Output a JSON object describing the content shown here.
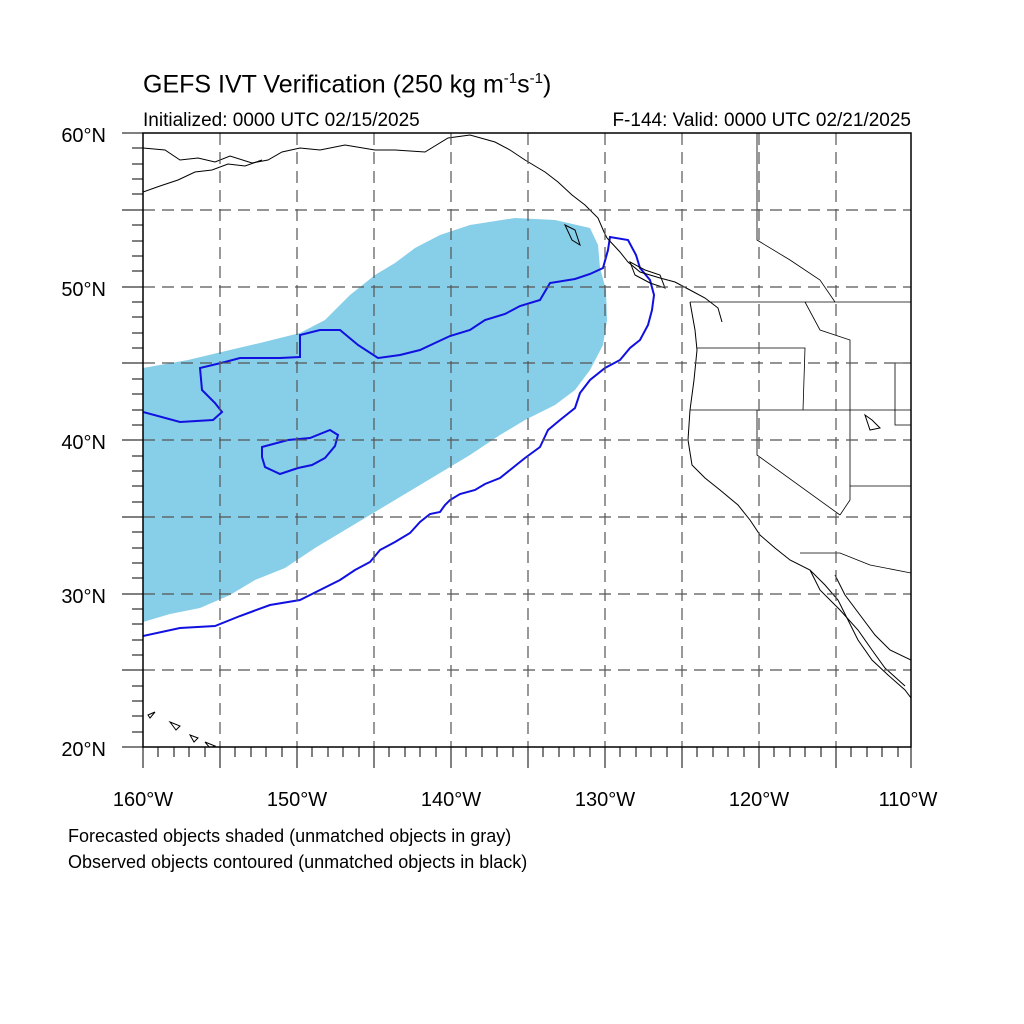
{
  "title": {
    "main": "GEFS IVT Verification (250 kg m",
    "exp1": "-1",
    "mid": "s",
    "exp2": "-1",
    "end": ")"
  },
  "initialized": "Initialized: 0000 UTC 02/15/2025",
  "valid": "F-144: Valid: 0000 UTC 02/21/2025",
  "captions": [
    "Forecasted objects shaded (unmatched objects in gray)",
    "Observed objects contoured (unmatched objects in black)"
  ],
  "map": {
    "lon_range": [
      -160,
      -110
    ],
    "lat_range": [
      20,
      60
    ],
    "lon_labels": [
      "160°W",
      "150°W",
      "140°W",
      "130°W",
      "120°W",
      "110°W"
    ],
    "lat_labels": [
      "20°N",
      "30°N",
      "40°N",
      "50°N",
      "60°N"
    ],
    "gridlines": "dashed every 5°",
    "colors": {
      "forecast_fill": "#87CEE8",
      "observed_contour": "#1010E0",
      "coastline": "#000000",
      "grid": "#555555"
    }
  }
}
